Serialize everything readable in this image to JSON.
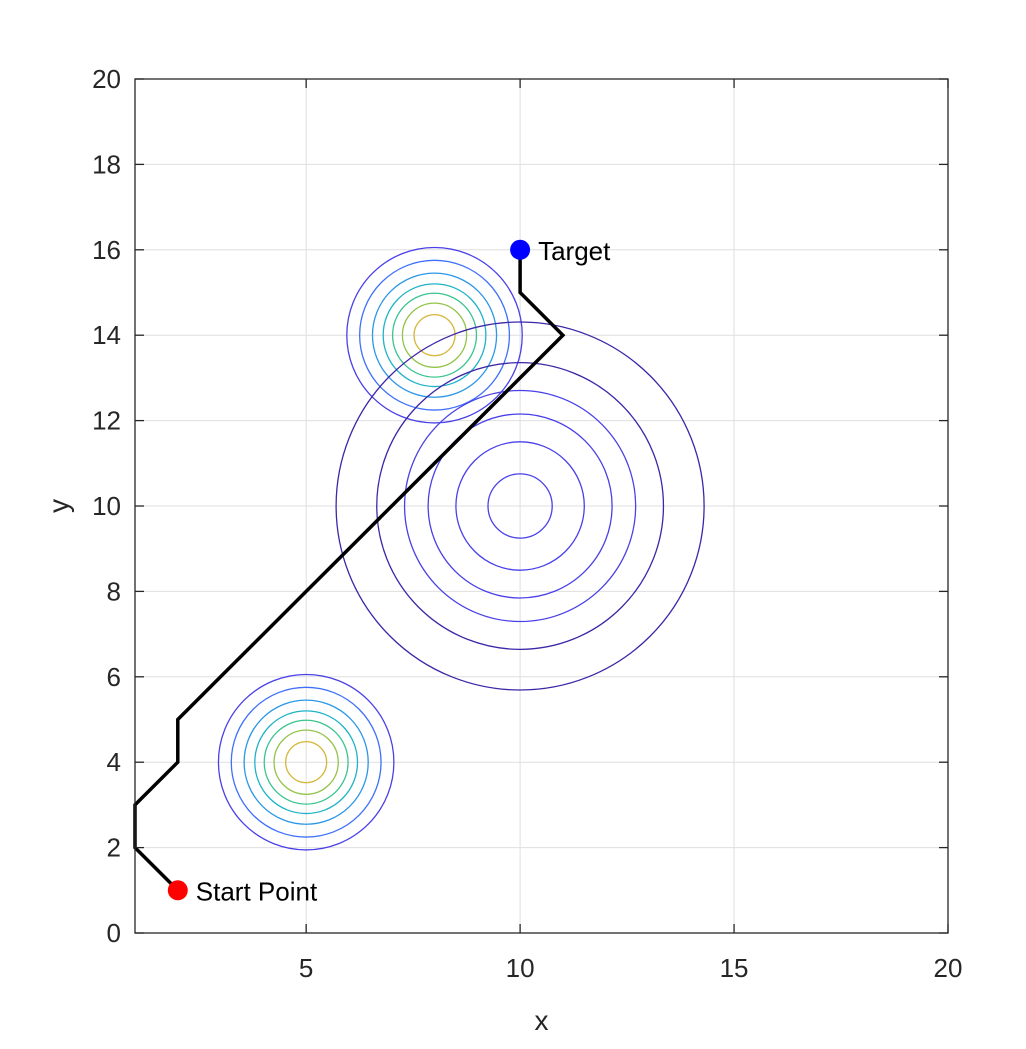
{
  "chart_data": {
    "type": "line",
    "xlabel": "x",
    "ylabel": "y",
    "xlim": [
      1,
      20
    ],
    "ylim": [
      0,
      20
    ],
    "xticks": [
      5,
      10,
      15,
      20
    ],
    "yticks": [
      0,
      2,
      4,
      6,
      8,
      10,
      12,
      14,
      16,
      18,
      20
    ],
    "grid": true,
    "box": true,
    "series": [
      {
        "x": [
          2,
          1,
          1,
          2,
          2,
          3,
          4,
          5,
          6,
          7,
          8,
          9,
          10,
          11,
          10,
          10
        ],
        "y": [
          1,
          2,
          3,
          4,
          5,
          6,
          7,
          8,
          9,
          10,
          11,
          12,
          13,
          14,
          15,
          16
        ],
        "color": "#000000"
      }
    ],
    "points": [
      {
        "label": "Start Point",
        "x": 2,
        "y": 1,
        "color": "#ff0000"
      },
      {
        "label": "Target",
        "x": 10,
        "y": 16,
        "color": "#0000ff"
      }
    ],
    "contour_levels_colors": [
      "#3d26a8",
      "#4a40e8",
      "#3e70fb",
      "#2c97e7",
      "#1fb3c7",
      "#3bc48f",
      "#93c44a",
      "#d6b538",
      "#fbd92a",
      "#f9fb15"
    ],
    "contour_groups": [
      {
        "center": [
          5,
          4
        ],
        "radii": [
          2.05,
          1.75,
          1.45,
          1.2,
          0.98,
          0.75,
          0.48
        ],
        "level_start": 1
      },
      {
        "center": [
          8,
          14
        ],
        "radii": [
          2.05,
          1.75,
          1.45,
          1.2,
          0.98,
          0.75,
          0.48
        ],
        "level_start": 1
      },
      {
        "center": [
          10,
          10
        ],
        "radii": [
          4.3,
          3.35,
          2.7,
          2.15,
          1.5,
          0.75
        ],
        "level_start": 0,
        "level_end": 1
      }
    ]
  }
}
